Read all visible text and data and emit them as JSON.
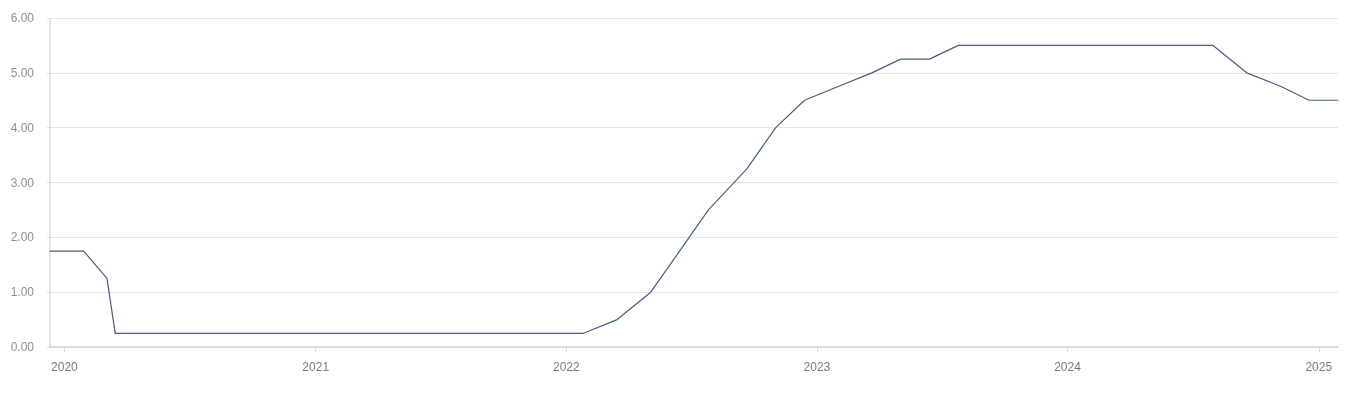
{
  "chart_data": {
    "type": "line",
    "x": [
      "2019-12-11",
      "2020-01-29",
      "2020-03-03",
      "2020-03-15",
      "2022-01-26",
      "2022-03-16",
      "2022-05-04",
      "2022-06-15",
      "2022-07-27",
      "2022-09-21",
      "2022-11-02",
      "2022-12-14",
      "2023-02-01",
      "2023-03-22",
      "2023-05-03",
      "2023-06-14",
      "2023-07-26",
      "2024-07-31",
      "2024-09-18",
      "2024-11-07",
      "2024-12-18",
      "2025-01-29"
    ],
    "series": [
      {
        "color": "#4a5e80",
        "values": [
          1.75,
          1.75,
          1.25,
          0.25,
          0.25,
          0.5,
          1.0,
          1.75,
          2.5,
          3.25,
          4.0,
          4.5,
          4.75,
          5.0,
          5.25,
          5.25,
          5.5,
          5.5,
          5.0,
          4.75,
          4.5,
          4.5
        ]
      }
    ],
    "xlim": [
      "2019-12-11",
      "2025-01-29"
    ],
    "xticks": [
      "2020",
      "2021",
      "2022",
      "2023",
      "2024",
      "2025"
    ],
    "ylim": [
      0,
      6
    ],
    "yticks": [
      {
        "value": 0,
        "label": "0.00"
      },
      {
        "value": 1,
        "label": "1.00"
      },
      {
        "value": 2,
        "label": "2.00"
      },
      {
        "value": 3,
        "label": "3.00"
      },
      {
        "value": 4,
        "label": "4.00"
      },
      {
        "value": 5,
        "label": "5.00"
      },
      {
        "value": 6,
        "label": "6.00"
      }
    ],
    "grid": "y",
    "marker": "none",
    "line_style": "solid"
  }
}
